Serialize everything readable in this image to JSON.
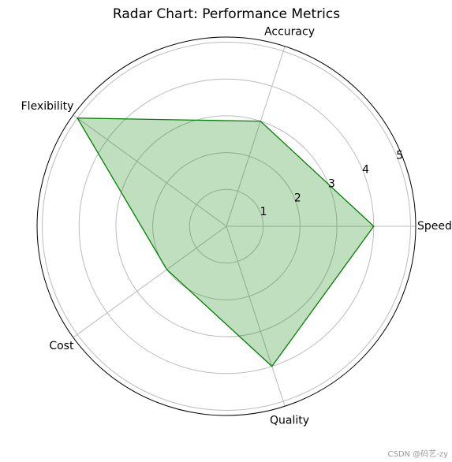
{
  "chart_data": {
    "type": "radar",
    "title": "Radar Chart: Performance Metrics",
    "categories": [
      "Speed",
      "Accuracy",
      "Flexibility",
      "Cost",
      "Quality"
    ],
    "series": [
      {
        "color": "green",
        "values": [
          4,
          3,
          5,
          2,
          4
        ]
      }
    ],
    "rlim": [
      0,
      5.14
    ],
    "rticks": [
      1,
      2,
      3,
      4,
      5
    ],
    "grid": true
  },
  "watermark": "CSDN @码艺-zy"
}
